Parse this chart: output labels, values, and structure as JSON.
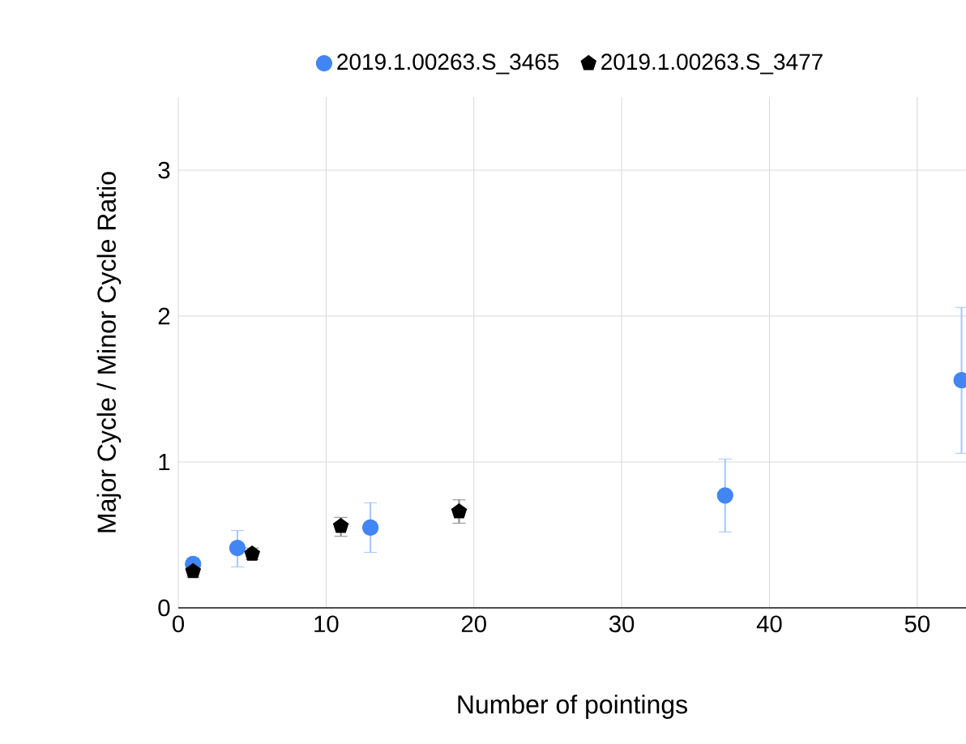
{
  "chart_data": {
    "type": "scatter",
    "xlabel": "Number of pointings",
    "ylabel": "Major Cycle / Minor Cycle Ratio",
    "xlim": [
      0,
      53.3
    ],
    "ylim": [
      0,
      3.5
    ],
    "xticks": [
      0,
      10,
      20,
      30,
      40,
      50
    ],
    "yticks": [
      0,
      1,
      2,
      3
    ],
    "grid": true,
    "legend": "top",
    "series": [
      {
        "name": "2019.1.00263.S_3465",
        "color": "#4285f4",
        "x": [
          1,
          4,
          13,
          37,
          53
        ],
        "values": [
          0.3,
          0.41,
          0.55,
          0.77,
          1.56
        ],
        "errors": [
          [
            0.25,
            0.34
          ],
          [
            0.28,
            0.53
          ],
          [
            0.38,
            0.72
          ],
          [
            0.52,
            1.02
          ],
          [
            1.06,
            2.06
          ]
        ]
      },
      {
        "name": "2019.1.00263.S_3477",
        "color": "#000000",
        "x": [
          1,
          5,
          11,
          19
        ],
        "values": [
          0.25,
          0.37,
          0.56,
          0.66
        ],
        "errors": [
          [
            0.21,
            0.29
          ],
          [
            0.33,
            0.41
          ],
          [
            0.49,
            0.62
          ],
          [
            0.58,
            0.74
          ]
        ]
      }
    ]
  }
}
